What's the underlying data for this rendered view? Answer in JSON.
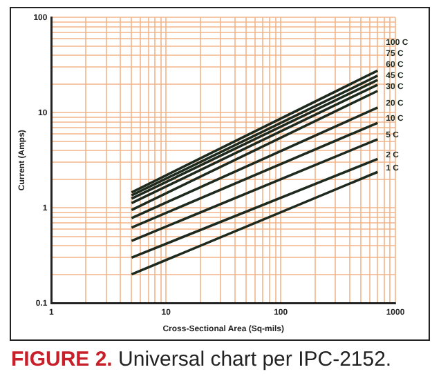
{
  "chart_data": {
    "type": "line",
    "xlabel": "Cross-Sectional Area (Sq-mils)",
    "ylabel": "Current (Amps)",
    "annotations": [
      "FIGURE 2.",
      "Universal chart per IPC-2152."
    ],
    "log": "xy",
    "grid": true,
    "legend": false,
    "marker": "none",
    "line_style": "solid",
    "xlim": [
      1,
      1000
    ],
    "ylim": [
      0.1,
      100
    ],
    "xticks": [
      1,
      {
        "value": 2,
        "label": null
      },
      {
        "value": 3,
        "label": null
      },
      {
        "value": 4,
        "label": null
      },
      {
        "value": 5,
        "label": null
      },
      {
        "value": 6,
        "label": null
      },
      {
        "value": 7,
        "label": null
      },
      {
        "value": 8,
        "label": null
      },
      {
        "value": 9,
        "label": null
      },
      10,
      {
        "value": 20,
        "label": null
      },
      {
        "value": 30,
        "label": null
      },
      {
        "value": 40,
        "label": null
      },
      {
        "value": 50,
        "label": null
      },
      {
        "value": 60,
        "label": null
      },
      {
        "value": 70,
        "label": null
      },
      {
        "value": 80,
        "label": null
      },
      {
        "value": 90,
        "label": null
      },
      100,
      {
        "value": 200,
        "label": null
      },
      {
        "value": 300,
        "label": null
      },
      {
        "value": 400,
        "label": null
      },
      {
        "value": 500,
        "label": null
      },
      {
        "value": 600,
        "label": null
      },
      {
        "value": 700,
        "label": null
      },
      {
        "value": 800,
        "label": null
      },
      {
        "value": 900,
        "label": null
      },
      1000
    ],
    "yticks": [
      0.1,
      {
        "value": 0.2,
        "label": null
      },
      {
        "value": 0.3,
        "label": null
      },
      {
        "value": 0.4,
        "label": null
      },
      {
        "value": 0.5,
        "label": null
      },
      {
        "value": 0.6,
        "label": null
      },
      {
        "value": 0.7,
        "label": null
      },
      {
        "value": 0.8,
        "label": null
      },
      {
        "value": 0.9,
        "label": null
      },
      1,
      {
        "value": 2,
        "label": null
      },
      {
        "value": 3,
        "label": null
      },
      {
        "value": 4,
        "label": null
      },
      {
        "value": 5,
        "label": null
      },
      {
        "value": 6,
        "label": null
      },
      {
        "value": 7,
        "label": null
      },
      {
        "value": 8,
        "label": null
      },
      {
        "value": 9,
        "label": null
      },
      10,
      {
        "value": 20,
        "label": null
      },
      {
        "value": 30,
        "label": null
      },
      {
        "value": 40,
        "label": null
      },
      {
        "value": 50,
        "label": null
      },
      {
        "value": 60,
        "label": null
      },
      {
        "value": 70,
        "label": null
      },
      {
        "value": 80,
        "label": null
      },
      {
        "value": 90,
        "label": null
      },
      100
    ],
    "x": [
      5,
      700
    ],
    "series": [
      {
        "name": "100 C",
        "color": "#1e2a1e",
        "values": [
          1.45,
          27.6
        ]
      },
      {
        "name": "75 C",
        "color": "#1e2a1e",
        "values": [
          1.35,
          24.4
        ]
      },
      {
        "name": "60 C",
        "color": "#1e2a1e",
        "values": [
          1.25,
          22
        ]
      },
      {
        "name": "45 C",
        "color": "#1e2a1e",
        "values": [
          1.12,
          19.6
        ]
      },
      {
        "name": "30 C",
        "color": "#1e2a1e",
        "values": [
          0.95,
          16.9
        ]
      },
      {
        "name": "20 C",
        "color": "#1e2a1e",
        "values": [
          0.78,
          11.3
        ]
      },
      {
        "name": "10 C",
        "color": "#1e2a1e",
        "values": [
          0.62,
          7.8
        ]
      },
      {
        "name": "5 C",
        "color": "#1e2a1e",
        "values": [
          0.45,
          5.25
        ]
      },
      {
        "name": "2 C",
        "color": "#1e2a1e",
        "values": [
          0.3,
          3.26
        ]
      },
      {
        "name": "1 C",
        "color": "#1e2a1e",
        "values": [
          0.2,
          2.38
        ]
      }
    ]
  }
}
